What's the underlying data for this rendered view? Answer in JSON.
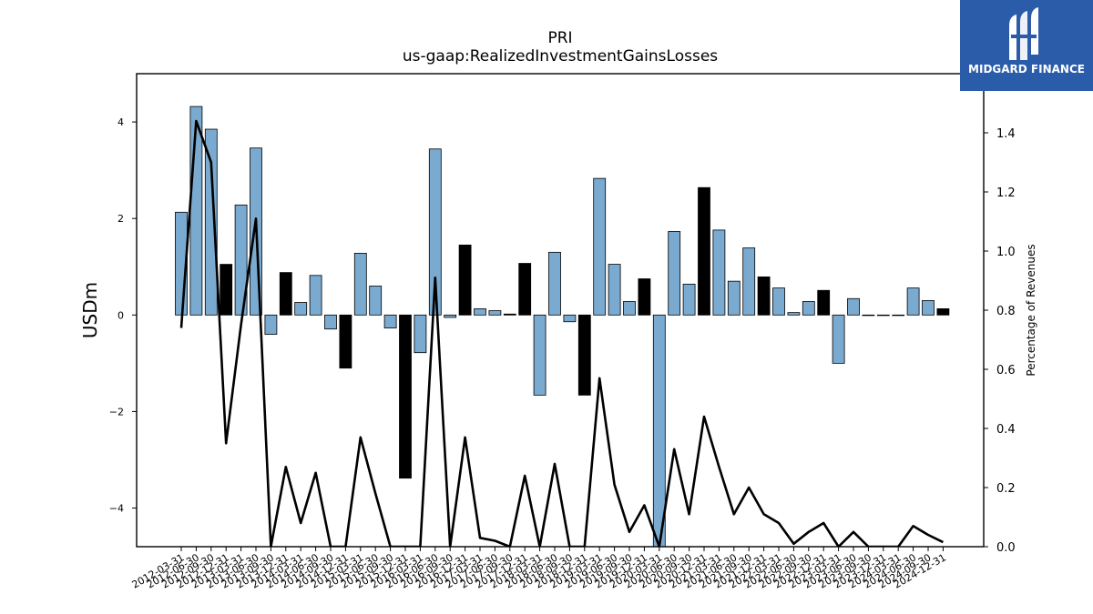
{
  "title": "PRI",
  "subtitle": "us-gaap:RealizedInvestmentGainsLosses",
  "logo": {
    "name": "MIDGARD FINANCE",
    "bg_color": "#2a5caa"
  },
  "chart_data": {
    "type": "bar",
    "title": "PRI",
    "subtitle": "us-gaap:RealizedInvestmentGainsLosses",
    "ylabel": "USDm",
    "y2label": "Percentage of Revenues",
    "ylim": [
      -4.8,
      5.0
    ],
    "y2lim": [
      0.0,
      1.6
    ],
    "yticks": [
      -4,
      -2,
      0,
      2,
      4
    ],
    "y2ticks": [
      0.0,
      0.2,
      0.4,
      0.6,
      0.8,
      1.0,
      1.2,
      1.4
    ],
    "tick_labels": [
      "2012-03-31",
      "2012-06-30",
      "2012-09-30",
      "2012-12-31",
      "2013-03-31",
      "2013-06-30",
      "2013-09-30",
      "2013-12-31",
      "2014-03-31",
      "2014-06-30",
      "2014-09-30",
      "2014-12-31",
      "2015-03-31",
      "2015-06-30",
      "2015-09-30",
      "2015-12-31",
      "2016-03-31",
      "2016-06-30",
      "2016-09-30",
      "2016-12-31",
      "2017-03-31",
      "2017-06-30",
      "2017-09-30",
      "2017-12-31",
      "2018-03-31",
      "2018-06-30",
      "2018-09-30",
      "2018-12-31",
      "2019-03-31",
      "2019-06-30",
      "2019-09-30",
      "2019-12-31",
      "2020-03-31",
      "2020-06-30",
      "2020-09-30",
      "2020-12-31",
      "2021-03-31",
      "2021-06-30",
      "2021-09-30",
      "2021-12-31",
      "2022-03-31",
      "2022-06-30",
      "2022-09-30",
      "2022-12-31",
      "2023-03-31",
      "2023-06-30",
      "2023-09-30",
      "2023-12-31",
      "2024-03-31",
      "2024-06-30",
      "2024-09-30",
      "2024-12-31"
    ],
    "values": [
      2.13,
      4.32,
      3.85,
      1.05,
      2.28,
      3.46,
      -0.4,
      0.88,
      0.26,
      0.82,
      -0.29,
      -1.1,
      1.28,
      0.6,
      -0.27,
      -3.38,
      -0.78,
      3.44,
      -0.05,
      1.45,
      0.13,
      0.09,
      0.02,
      1.07,
      -1.66,
      1.3,
      -0.14,
      -1.66,
      2.83,
      1.05,
      0.28,
      0.75,
      -5.2,
      1.73,
      0.64,
      2.64,
      1.76,
      0.7,
      1.39,
      0.79,
      0.56,
      0.05,
      0.28,
      0.51,
      -1.0,
      0.34,
      0.0,
      0.0,
      0.0,
      0.56,
      0.3,
      0.13
    ],
    "bar_colors": [
      "blue",
      "blue",
      "blue",
      "black",
      "blue",
      "blue",
      "blue",
      "black",
      "blue",
      "blue",
      "blue",
      "black",
      "blue",
      "blue",
      "blue",
      "black",
      "blue",
      "blue",
      "blue",
      "black",
      "blue",
      "blue",
      "black",
      "black",
      "blue",
      "blue",
      "blue",
      "black",
      "blue",
      "blue",
      "blue",
      "black",
      "blue",
      "blue",
      "blue",
      "black",
      "blue",
      "blue",
      "blue",
      "black",
      "blue",
      "blue",
      "blue",
      "black",
      "blue",
      "blue",
      "blue",
      "black",
      "blue",
      "blue",
      "blue",
      "black"
    ],
    "series": [
      {
        "axis": "right",
        "values": [
          0.74,
          1.44,
          1.3,
          0.35,
          0.75,
          1.11,
          0.0,
          0.27,
          0.08,
          0.25,
          0.0,
          0.0,
          0.37,
          0.18,
          0.0,
          0.0,
          0.0,
          0.91,
          0.0,
          0.37,
          0.03,
          0.02,
          0.0,
          0.24,
          0.0,
          0.28,
          0.0,
          0.0,
          0.57,
          0.21,
          0.05,
          0.14,
          0.0,
          0.33,
          0.11,
          0.44,
          0.27,
          0.11,
          0.2,
          0.11,
          0.08,
          0.01,
          0.05,
          0.08,
          0.0,
          0.05,
          0.0,
          0.0,
          0.0,
          0.07,
          0.04,
          0.015
        ]
      }
    ],
    "colors": {
      "bar_blue": "#7aaad0",
      "bar_black": "#000000",
      "line": "#000000"
    },
    "grid": false
  }
}
